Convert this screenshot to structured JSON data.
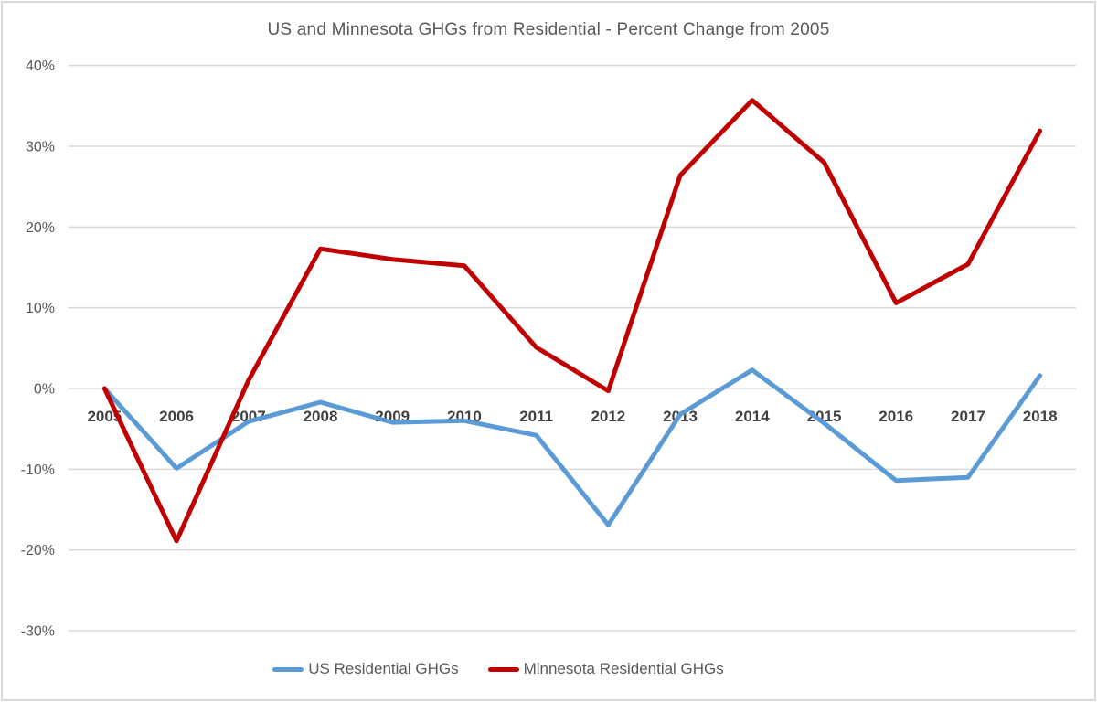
{
  "chart_data": {
    "type": "line",
    "title": "US and Minnesota GHGs from Residential - Percent Change from 2005",
    "categories": [
      "2005",
      "2006",
      "2007",
      "2008",
      "2009",
      "2010",
      "2011",
      "2012",
      "2013",
      "2014",
      "2015",
      "2016",
      "2017",
      "2018"
    ],
    "series": [
      {
        "name": "US Residential GHGs",
        "color": "#5B9BD5",
        "values": [
          0.0,
          -9.9,
          -4.1,
          -1.7,
          -4.2,
          -4.0,
          -5.8,
          -16.9,
          -3.2,
          2.3,
          -4.3,
          -11.4,
          -11.0,
          1.6
        ]
      },
      {
        "name": "Minnesota Residential GHGs",
        "color": "#C00000",
        "values": [
          0.0,
          -18.9,
          1.0,
          17.3,
          16.0,
          15.2,
          5.1,
          -0.3,
          26.4,
          35.7,
          28.0,
          10.6,
          15.4,
          31.9
        ]
      }
    ],
    "xlabel": "",
    "ylabel": "",
    "ylim": [
      -30,
      40
    ],
    "ytick_values": [
      40,
      30,
      20,
      10,
      0,
      -10,
      -20,
      -30
    ],
    "ytick_labels": [
      "40%",
      "30%",
      "20%",
      "10%",
      "0%",
      "-10%",
      "-20%",
      "-30%"
    ],
    "grid": true,
    "legend_position": "bottom"
  },
  "colors": {
    "grid": "#D9D9D9",
    "border": "#D9D9D9",
    "axis_text": "#595959",
    "category_text": "#404040",
    "title_text": "#595959"
  }
}
